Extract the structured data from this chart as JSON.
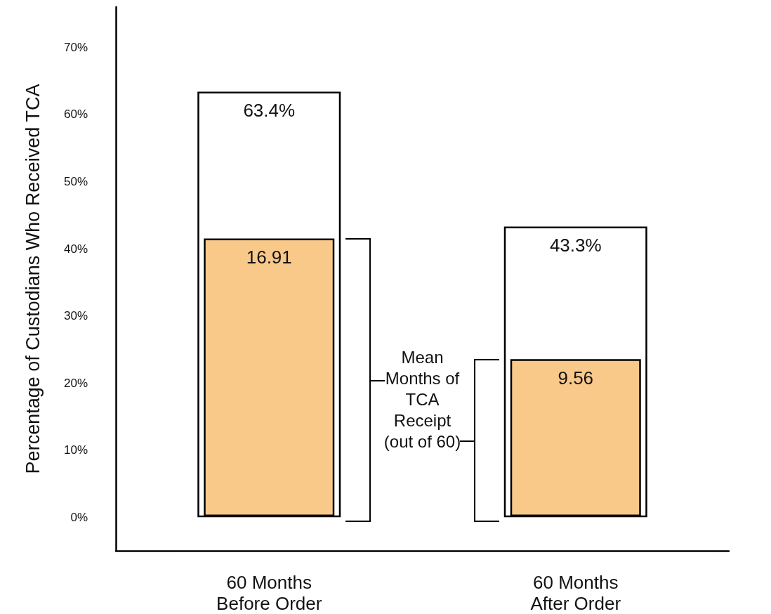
{
  "chart_data": {
    "type": "bar",
    "ylabel": "Percentage of Custodians Who Received TCA",
    "categories": [
      "60 Months\nBefore Order",
      "60 Months\nAfter Order"
    ],
    "series": [
      {
        "color": "#ffffff",
        "values": [
          63.4,
          43.3
        ],
        "value_labels": [
          "63.4%",
          "43.3%"
        ]
      },
      {
        "color": "#f9c98a",
        "values": [
          16.91,
          9.56
        ],
        "value_labels": [
          "16.91",
          "9.56"
        ],
        "axis": "y2"
      }
    ],
    "ylim": [
      -5,
      76
    ],
    "yticks": [
      {
        "value": 0,
        "label": "0%"
      },
      {
        "value": 10,
        "label": "10%"
      },
      {
        "value": 20,
        "label": "20%"
      },
      {
        "value": 30,
        "label": "30%"
      },
      {
        "value": 40,
        "label": "40%"
      },
      {
        "value": 50,
        "label": "50%"
      },
      {
        "value": 60,
        "label": "60%"
      },
      {
        "value": 70,
        "label": "70%"
      }
    ],
    "y2lim": [
      -2.1,
      31
    ],
    "annotations": [
      "Mean\nMonths of\nTCA\nReceipt\n(out of 60)"
    ],
    "grid": false
  }
}
